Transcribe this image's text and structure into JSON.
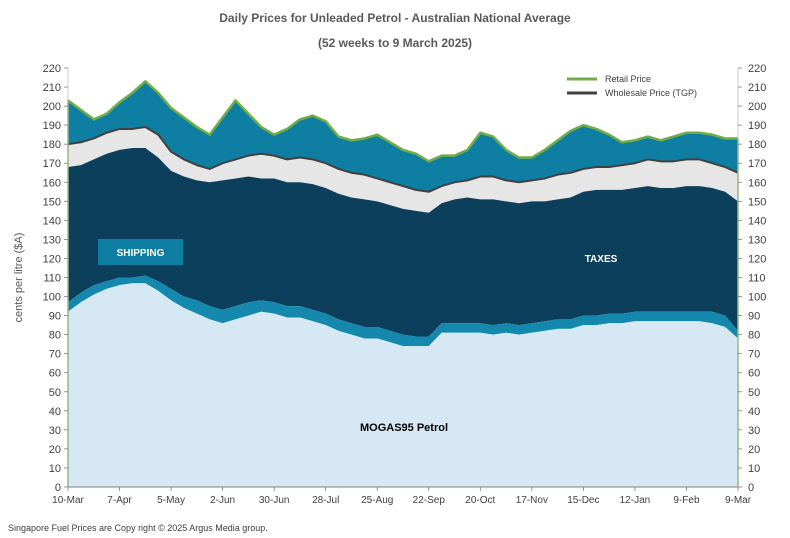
{
  "chart_data": {
    "type": "area",
    "title": "Daily  Prices for Unleaded  Petrol  - Australian  National  Average",
    "subtitle": "(52 weeks to 9 March 2025)",
    "ylabel": "cents per litre ($A)",
    "xlabel": "",
    "ylim": [
      0,
      220
    ],
    "yticks": [
      0,
      10,
      20,
      30,
      40,
      50,
      60,
      70,
      80,
      90,
      100,
      110,
      120,
      130,
      140,
      150,
      160,
      170,
      180,
      190,
      200,
      210,
      220
    ],
    "xlim": [
      0,
      364
    ],
    "x_ticks": [
      {
        "day": 0,
        "label": "10-Mar"
      },
      {
        "day": 28,
        "label": "7-Apr"
      },
      {
        "day": 56,
        "label": "5-May"
      },
      {
        "day": 84,
        "label": "2-Jun"
      },
      {
        "day": 112,
        "label": "30-Jun"
      },
      {
        "day": 140,
        "label": "28-Jul"
      },
      {
        "day": 168,
        "label": "25-Aug"
      },
      {
        "day": 196,
        "label": "22-Sep"
      },
      {
        "day": 224,
        "label": "20-Oct"
      },
      {
        "day": 252,
        "label": "17-Nov"
      },
      {
        "day": 280,
        "label": "15-Dec"
      },
      {
        "day": 308,
        "label": "12-Jan"
      },
      {
        "day": 336,
        "label": "9-Feb"
      },
      {
        "day": 364,
        "label": "9-Mar"
      }
    ],
    "x_days": [
      0,
      7,
      14,
      21,
      28,
      35,
      42,
      49,
      56,
      63,
      70,
      77,
      84,
      91,
      98,
      105,
      112,
      119,
      126,
      133,
      140,
      147,
      154,
      161,
      168,
      175,
      182,
      189,
      196,
      203,
      210,
      217,
      224,
      231,
      238,
      245,
      252,
      259,
      266,
      273,
      280,
      287,
      294,
      301,
      308,
      315,
      322,
      329,
      336,
      343,
      350,
      357,
      364
    ],
    "series": [
      {
        "name": "Retail Price",
        "values": [
          203,
          198,
          193,
          196,
          202,
          207,
          213,
          207,
          199,
          194,
          189,
          185,
          194,
          203,
          196,
          189,
          185,
          188,
          193,
          195,
          192,
          184,
          182,
          183,
          185,
          181,
          177,
          175,
          171,
          174,
          174,
          177,
          186,
          184,
          177,
          173,
          173,
          177,
          182,
          187,
          190,
          188,
          185,
          181,
          182,
          184,
          182,
          184,
          186,
          186,
          185,
          183,
          183
        ]
      },
      {
        "name": "Wholesale Price (TGP)",
        "values": [
          180,
          181,
          183,
          186,
          188,
          188,
          189,
          185,
          176,
          172,
          169,
          167,
          170,
          172,
          174,
          175,
          174,
          172,
          173,
          172,
          170,
          167,
          165,
          164,
          162,
          160,
          158,
          156,
          155,
          158,
          160,
          161,
          163,
          163,
          161,
          160,
          161,
          162,
          164,
          165,
          167,
          168,
          168,
          169,
          170,
          172,
          171,
          171,
          172,
          172,
          170,
          168,
          165
        ]
      },
      {
        "name": "Taxes (top of band)",
        "values": [
          168,
          169,
          172,
          175,
          177,
          178,
          178,
          173,
          166,
          163,
          161,
          160,
          161,
          162,
          163,
          162,
          162,
          160,
          160,
          159,
          157,
          154,
          152,
          151,
          150,
          148,
          146,
          145,
          144,
          149,
          151,
          152,
          151,
          151,
          150,
          149,
          150,
          150,
          151,
          152,
          155,
          156,
          156,
          156,
          157,
          158,
          157,
          157,
          158,
          158,
          157,
          155,
          150
        ]
      },
      {
        "name": "Shipping (top of band)",
        "values": [
          97,
          102,
          106,
          108,
          110,
          110,
          111,
          108,
          104,
          100,
          98,
          95,
          93,
          95,
          97,
          98,
          97,
          95,
          95,
          93,
          91,
          88,
          86,
          84,
          84,
          82,
          80,
          79,
          79,
          86,
          86,
          86,
          86,
          85,
          86,
          85,
          86,
          87,
          88,
          88,
          90,
          90,
          91,
          91,
          92,
          92,
          92,
          92,
          92,
          92,
          92,
          90,
          82
        ]
      },
      {
        "name": "MOGAS95 Petrol",
        "values": [
          92,
          97,
          101,
          104,
          106,
          107,
          107,
          103,
          98,
          94,
          91,
          88,
          86,
          88,
          90,
          92,
          91,
          89,
          89,
          87,
          85,
          82,
          80,
          78,
          78,
          76,
          74,
          74,
          74,
          81,
          81,
          81,
          81,
          80,
          81,
          80,
          81,
          82,
          83,
          83,
          85,
          85,
          86,
          86,
          87,
          87,
          87,
          87,
          87,
          87,
          86,
          84,
          78
        ]
      }
    ],
    "legend": [
      "Retail Price",
      "Wholesale Price (TGP)"
    ],
    "legend_position": "top-right",
    "annotations": {
      "shipping": "SHIPPING",
      "taxes": "TAXES",
      "mogas": "MOGAS95 Petrol"
    },
    "colors": {
      "retail_line": "#70ad47",
      "wholesale_line": "#404040",
      "margin_fill": "#0e7ea3",
      "gap_fill": "#e6e6e6",
      "taxes_fill": "#0b3f5c",
      "shipping_fill": "#1589ad",
      "mogas_fill": "#d6e8f3",
      "shipping_label_bg": "#0e7ea3"
    }
  },
  "footer": "Singapore  Fuel Prices are  Copy right © 2025 Argus Media group."
}
